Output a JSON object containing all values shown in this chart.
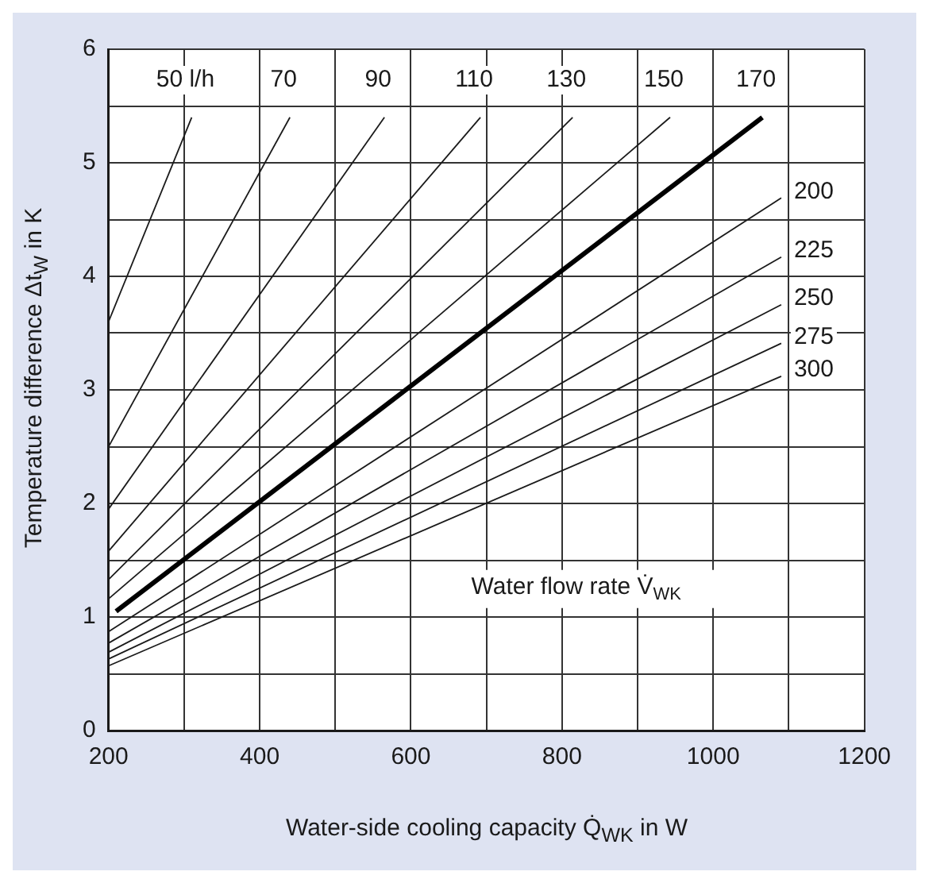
{
  "chart_data": {
    "type": "line",
    "xlabel": "Water-side cooling capacity Q̇$_{WK}$ in W",
    "ylabel": "Temperature difference Δt$_{W}$ in K",
    "annotations": [
      "Water flow rate V̇$_{WK}$"
    ],
    "xlim": [
      200,
      1200
    ],
    "ylim": [
      0,
      6
    ],
    "xticks": [
      200,
      {
        "value": 300,
        "label": null
      },
      400,
      {
        "value": 500,
        "label": null
      },
      600,
      {
        "value": 700,
        "label": null
      },
      800,
      {
        "value": 900,
        "label": null
      },
      1000,
      {
        "value": 1100,
        "label": null
      },
      1200
    ],
    "yticks": [
      0,
      {
        "value": 0.5,
        "label": null
      },
      1,
      {
        "value": 1.5,
        "label": null
      },
      2,
      {
        "value": 2.5,
        "label": null
      },
      3,
      {
        "value": 3.5,
        "label": null
      },
      4,
      {
        "value": 4.5,
        "label": null
      },
      5,
      {
        "value": 5.5,
        "label": null
      },
      6
    ],
    "grid": true,
    "legend": false,
    "marker": "none",
    "line_style": "solid",
    "series": [
      {
        "name": "50 l/h",
        "color": "#1a1a1a",
        "x": [
          200,
          310
        ],
        "values": [
          3.6,
          5.4
        ]
      },
      {
        "name": "70",
        "color": "#1a1a1a",
        "x": [
          200,
          440
        ],
        "values": [
          2.5,
          5.4
        ]
      },
      {
        "name": "90",
        "color": "#1a1a1a",
        "x": [
          200,
          565
        ],
        "values": [
          1.95,
          5.4
        ]
      },
      {
        "name": "110",
        "color": "#1a1a1a",
        "x": [
          200,
          692
        ],
        "values": [
          1.58,
          5.4
        ]
      },
      {
        "name": "130",
        "color": "#1a1a1a",
        "x": [
          200,
          814
        ],
        "values": [
          1.33,
          5.4
        ]
      },
      {
        "name": "150",
        "color": "#1a1a1a",
        "x": [
          200,
          943
        ],
        "values": [
          1.16,
          5.4
        ]
      },
      {
        "name": "170",
        "color": "#000000",
        "x": [
          210,
          1065
        ],
        "values": [
          1.05,
          5.4
        ]
      },
      {
        "name": "200",
        "color": "#1a1a1a",
        "x": [
          200,
          1090
        ],
        "values": [
          0.87,
          4.69
        ]
      },
      {
        "name": "225",
        "color": "#1a1a1a",
        "x": [
          200,
          1090
        ],
        "values": [
          0.77,
          4.17
        ]
      },
      {
        "name": "250",
        "color": "#1a1a1a",
        "x": [
          200,
          1090
        ],
        "values": [
          0.69,
          3.75
        ]
      },
      {
        "name": "275",
        "color": "#1a1a1a",
        "x": [
          200,
          1090
        ],
        "values": [
          0.63,
          3.41
        ]
      },
      {
        "name": "300",
        "color": "#1a1a1a",
        "x": [
          200,
          1090
        ],
        "values": [
          0.57,
          3.12
        ]
      }
    ]
  }
}
